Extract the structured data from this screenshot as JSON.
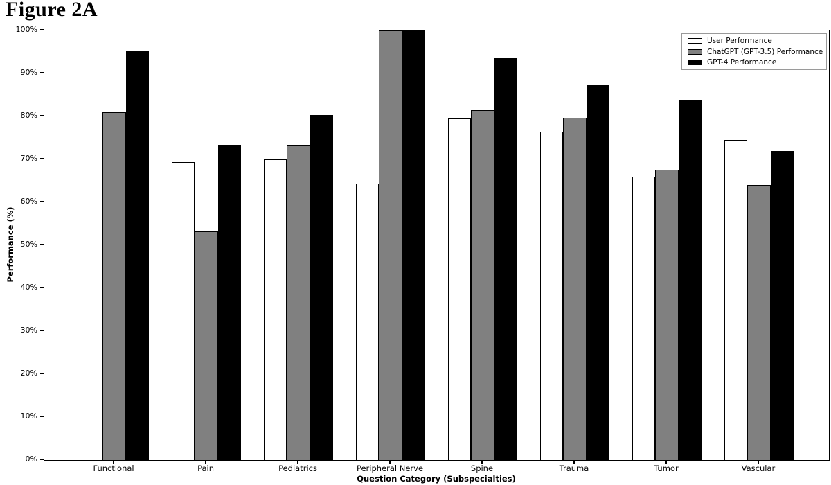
{
  "figure_title": "Figure 2A",
  "colors": {
    "background": "#ffffff",
    "axis": "#000000",
    "bar_edge": "#000000",
    "legend_border": "#9a9a9a"
  },
  "chart_data": {
    "type": "bar",
    "title": "Figure 2A",
    "xlabel": "Question Category (Subspecialties)",
    "ylabel": "Performance (%)",
    "categories": [
      "Functional",
      "Pain",
      "Pediatrics",
      "Peripheral Nerve",
      "Spine",
      "Trauma",
      "Tumor",
      "Vascular"
    ],
    "series": [
      {
        "name": "User Performance",
        "color": "#ffffff",
        "values": [
          65.9,
          69.4,
          70.0,
          64.3,
          79.5,
          76.5,
          66.0,
          74.5
        ]
      },
      {
        "name": "ChatGPT (GPT-3.5) Performance",
        "color": "#808080",
        "values": [
          81.0,
          53.3,
          73.3,
          100.0,
          81.5,
          79.7,
          67.6,
          64.0
        ]
      },
      {
        "name": "GPT-4 Performance",
        "color": "#000000",
        "values": [
          95.2,
          73.3,
          80.4,
          100.0,
          93.7,
          87.5,
          83.8,
          72.0
        ]
      }
    ],
    "ylim": [
      0,
      100
    ],
    "ytick_labels": [
      "0%",
      "10%",
      "20%",
      "30%",
      "40%",
      "50%",
      "60%",
      "70%",
      "80%",
      "90%",
      "100%"
    ],
    "legend_position": "upper right",
    "grid": false,
    "bar_unit_width": 0.25,
    "x_axis_span_units": 8.52,
    "first_center_offset_units": 0.76
  }
}
